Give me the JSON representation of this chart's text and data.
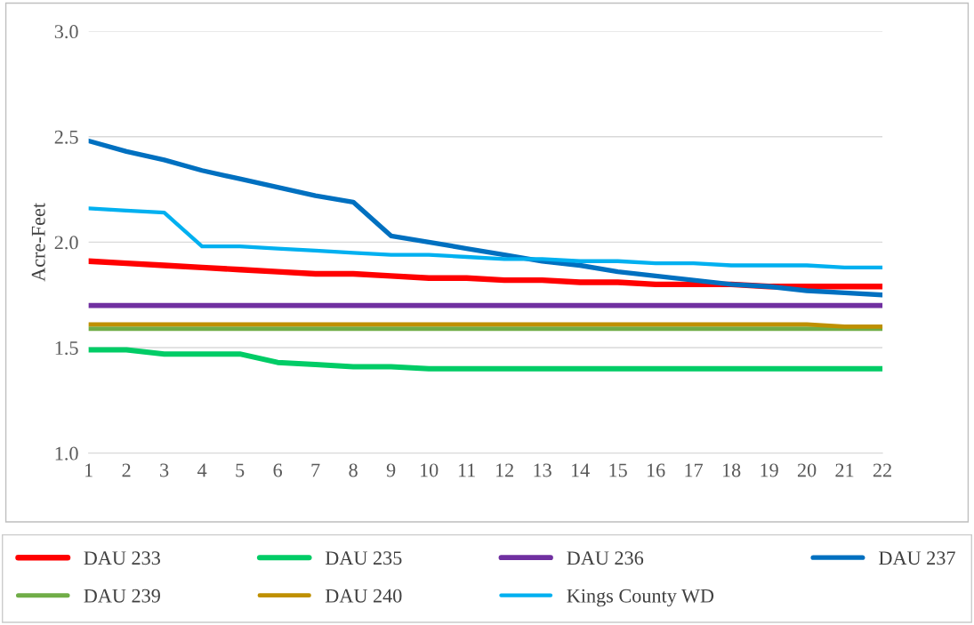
{
  "chart_data": {
    "type": "line",
    "ylabel": "Acre-Feet",
    "categories": [
      "1",
      "2",
      "3",
      "4",
      "5",
      "6",
      "7",
      "8",
      "9",
      "10",
      "11",
      "12",
      "13",
      "14",
      "15",
      "16",
      "17",
      "18",
      "19",
      "20",
      "21",
      "22"
    ],
    "ylim": [
      1.0,
      3.0
    ],
    "yticks": [
      {
        "value": 1.0,
        "label": "1.0"
      },
      {
        "value": 1.5,
        "label": "1.5"
      },
      {
        "value": 2.0,
        "label": "2.0"
      },
      {
        "value": 2.5,
        "label": "2.5"
      },
      {
        "value": 3.0,
        "label": "3.0"
      }
    ],
    "grid": "y",
    "legend": "bottom",
    "line_style": "solid",
    "series": [
      {
        "name": "DAU 233",
        "color": "#ff0000",
        "values": [
          1.91,
          1.9,
          1.89,
          1.88,
          1.87,
          1.86,
          1.85,
          1.85,
          1.84,
          1.83,
          1.83,
          1.82,
          1.82,
          1.81,
          1.81,
          1.8,
          1.8,
          1.8,
          1.79,
          1.79,
          1.79,
          1.79
        ]
      },
      {
        "name": "DAU 235",
        "color": "#00cc66",
        "values": [
          1.49,
          1.49,
          1.47,
          1.47,
          1.47,
          1.43,
          1.42,
          1.41,
          1.41,
          1.4,
          1.4,
          1.4,
          1.4,
          1.4,
          1.4,
          1.4,
          1.4,
          1.4,
          1.4,
          1.4,
          1.4,
          1.4
        ]
      },
      {
        "name": "DAU 236",
        "color": "#7030a0",
        "values": [
          1.7,
          1.7,
          1.7,
          1.7,
          1.7,
          1.7,
          1.7,
          1.7,
          1.7,
          1.7,
          1.7,
          1.7,
          1.7,
          1.7,
          1.7,
          1.7,
          1.7,
          1.7,
          1.7,
          1.7,
          1.7,
          1.7
        ]
      },
      {
        "name": "DAU 237",
        "color": "#0070c0",
        "values": [
          2.48,
          2.43,
          2.39,
          2.34,
          2.3,
          2.26,
          2.22,
          2.19,
          2.03,
          2.0,
          1.97,
          1.94,
          1.91,
          1.89,
          1.86,
          1.84,
          1.82,
          1.8,
          1.79,
          1.77,
          1.76,
          1.75
        ]
      },
      {
        "name": "DAU 239",
        "color": "#70ad47",
        "values": [
          1.59,
          1.59,
          1.59,
          1.59,
          1.59,
          1.59,
          1.59,
          1.59,
          1.59,
          1.59,
          1.59,
          1.59,
          1.59,
          1.59,
          1.59,
          1.59,
          1.59,
          1.59,
          1.59,
          1.59,
          1.59,
          1.59
        ]
      },
      {
        "name": "DAU 240",
        "color": "#bf9000",
        "values": [
          1.61,
          1.61,
          1.61,
          1.61,
          1.61,
          1.61,
          1.61,
          1.61,
          1.61,
          1.61,
          1.61,
          1.61,
          1.61,
          1.61,
          1.61,
          1.61,
          1.61,
          1.61,
          1.61,
          1.61,
          1.6,
          1.6
        ]
      },
      {
        "name": "Kings County WD",
        "color": "#00b0f0",
        "values": [
          2.16,
          2.15,
          2.14,
          1.98,
          1.98,
          1.97,
          1.96,
          1.95,
          1.94,
          1.94,
          1.93,
          1.92,
          1.92,
          1.91,
          1.91,
          1.9,
          1.9,
          1.89,
          1.89,
          1.89,
          1.88,
          1.88
        ]
      }
    ]
  }
}
